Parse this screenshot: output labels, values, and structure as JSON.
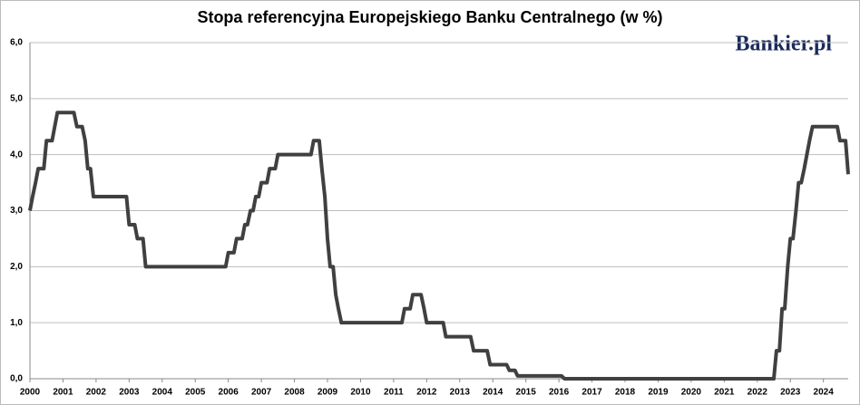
{
  "chart_data": {
    "type": "line",
    "title": "Stopa referencyjna  Europejskiego Banku Centralnego (w %)",
    "logo": "Bankier.pl",
    "x": [
      2000.0,
      2000.08,
      2000.17,
      2000.25,
      2000.42,
      2000.5,
      2000.67,
      2000.75,
      2000.83,
      2001.33,
      2001.42,
      2001.58,
      2001.67,
      2001.75,
      2001.83,
      2001.92,
      2002.92,
      2003.0,
      2003.17,
      2003.25,
      2003.42,
      2003.5,
      2005.92,
      2006.0,
      2006.17,
      2006.25,
      2006.42,
      2006.5,
      2006.58,
      2006.67,
      2006.75,
      2006.83,
      2006.92,
      2007.0,
      2007.17,
      2007.25,
      2007.42,
      2007.5,
      2008.5,
      2008.58,
      2008.75,
      2008.83,
      2008.92,
      2009.0,
      2009.08,
      2009.17,
      2009.25,
      2009.33,
      2009.42,
      2011.25,
      2011.33,
      2011.5,
      2011.58,
      2011.83,
      2011.92,
      2012.0,
      2012.5,
      2012.58,
      2013.33,
      2013.42,
      2013.83,
      2013.92,
      2014.42,
      2014.5,
      2014.67,
      2014.75,
      2016.08,
      2016.17,
      2022.5,
      2022.58,
      2022.67,
      2022.75,
      2022.83,
      2022.92,
      2023.0,
      2023.08,
      2023.17,
      2023.25,
      2023.33,
      2023.42,
      2023.5,
      2023.58,
      2023.67,
      2024.42,
      2024.5,
      2024.67,
      2024.75
    ],
    "series": [
      {
        "name": "Stopa referencyjna",
        "color": "#404040",
        "values": [
          3.0,
          3.25,
          3.5,
          3.75,
          3.75,
          4.25,
          4.25,
          4.5,
          4.75,
          4.75,
          4.5,
          4.5,
          4.25,
          3.75,
          3.75,
          3.25,
          3.25,
          2.75,
          2.75,
          2.5,
          2.5,
          2.0,
          2.0,
          2.25,
          2.25,
          2.5,
          2.5,
          2.75,
          2.75,
          3.0,
          3.0,
          3.25,
          3.25,
          3.5,
          3.5,
          3.75,
          3.75,
          4.0,
          4.0,
          4.25,
          4.25,
          3.75,
          3.25,
          2.5,
          2.0,
          2.0,
          1.5,
          1.25,
          1.0,
          1.0,
          1.25,
          1.25,
          1.5,
          1.5,
          1.25,
          1.0,
          1.0,
          0.75,
          0.75,
          0.5,
          0.5,
          0.25,
          0.25,
          0.15,
          0.15,
          0.05,
          0.05,
          0.0,
          0.0,
          0.5,
          0.5,
          1.25,
          1.25,
          2.0,
          2.5,
          2.5,
          3.0,
          3.5,
          3.5,
          3.75,
          4.0,
          4.25,
          4.5,
          4.5,
          4.25,
          4.25,
          3.65
        ]
      }
    ],
    "xlim": [
      2000,
      2024.75
    ],
    "xticks": [
      2000,
      2001,
      2002,
      2003,
      2004,
      2005,
      2006,
      2007,
      2008,
      2009,
      2010,
      2011,
      2012,
      2013,
      2014,
      2015,
      2016,
      2017,
      2018,
      2019,
      2020,
      2021,
      2022,
      2023,
      2024
    ],
    "ylim": [
      0,
      6
    ],
    "yticks": [
      {
        "value": 0,
        "label": "0,0"
      },
      {
        "value": 1,
        "label": "1,0"
      },
      {
        "value": 2,
        "label": "2,0"
      },
      {
        "value": 3,
        "label": "3,0"
      },
      {
        "value": 4,
        "label": "4,0"
      },
      {
        "value": 5,
        "label": "5,0"
      },
      {
        "value": 6,
        "label": "6,0"
      }
    ],
    "grid": true
  }
}
